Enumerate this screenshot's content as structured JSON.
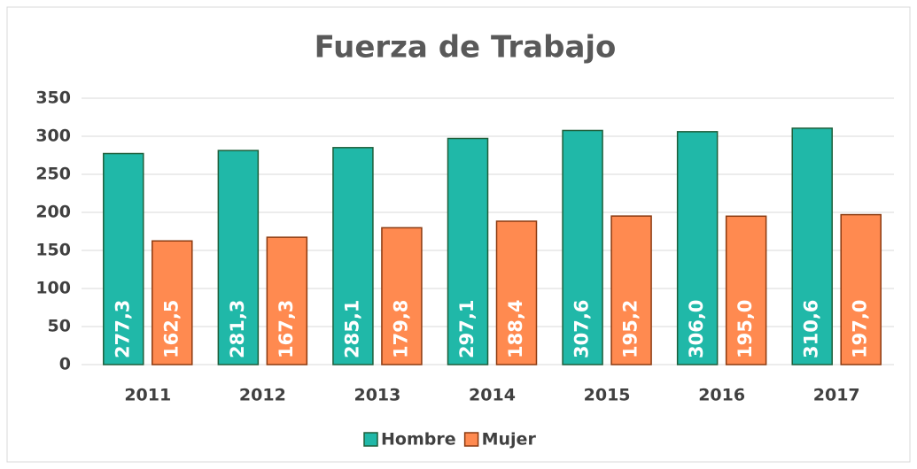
{
  "chart_data": {
    "type": "bar",
    "title": "Fuerza de Trabajo",
    "categories": [
      "2011",
      "2012",
      "2013",
      "2014",
      "2015",
      "2016",
      "2017"
    ],
    "series": [
      {
        "name": "Hombre",
        "color": "#20b8a8",
        "values": [
          277.3,
          281.3,
          285.1,
          297.1,
          307.6,
          306.0,
          310.6
        ],
        "value_labels": [
          "277,3",
          "281,3",
          "285,1",
          "297,1",
          "307,6",
          "306,0",
          "310,6"
        ]
      },
      {
        "name": "Mujer",
        "color": "#ff8a50",
        "values": [
          162.5,
          167.3,
          179.8,
          188.4,
          195.2,
          195.0,
          197.0
        ],
        "value_labels": [
          "162,5",
          "167,3",
          "179,8",
          "188,4",
          "195,2",
          "195,0",
          "197,0"
        ]
      }
    ],
    "ylim": [
      0,
      350
    ],
    "yticks": [
      0,
      50,
      100,
      150,
      200,
      250,
      300,
      350
    ],
    "grid": true,
    "legend": "bottom"
  }
}
